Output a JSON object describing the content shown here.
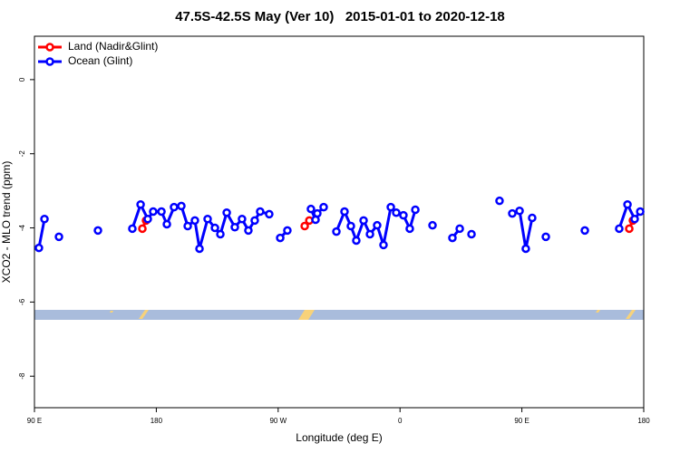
{
  "chart_data": {
    "type": "line",
    "title": "47.5S-42.5S May (Ver 10)   2015-01-01 to 2020-12-18",
    "xlabel": "Longitude (deg E)",
    "ylabel": "XCO2 - MLO trend (ppm)",
    "xlim": [
      90,
      540
    ],
    "xticks": [
      {
        "value": 90,
        "label": "90 E"
      },
      {
        "value": 180,
        "label": "180"
      },
      {
        "value": 270,
        "label": "90 W"
      },
      {
        "value": 360,
        "label": "0"
      },
      {
        "value": 450,
        "label": "90 E"
      },
      {
        "value": 540,
        "label": "180"
      }
    ],
    "ylim": [
      -8.85,
      1.17
    ],
    "yticks": [
      0,
      -2,
      -4,
      -6,
      -8
    ],
    "legend": "topleft",
    "series": [
      {
        "name": "Land (Nadir&Glint)",
        "color": "#ff0000",
        "x": [
          169.7,
          172.4,
          null,
          289.6,
          293.0,
          null,
          529.3,
          532.0
        ],
        "values": [
          -4.02,
          -3.8,
          null,
          -3.95,
          -3.8,
          null,
          -4.02,
          -3.8
        ]
      },
      {
        "name": "Ocean (Glint)",
        "color": "#0000ff",
        "x": [
          93.3,
          97.4,
          null,
          108.1,
          null,
          136.9,
          null,
          162.3,
          168.4,
          173.7,
          177.7,
          183.8,
          187.8,
          193.1,
          198.5,
          203.2,
          208.5,
          211.9,
          217.9,
          223.3,
          227.3,
          232.0,
          238.0,
          243.3,
          248.0,
          252.7,
          256.7,
          263.4,
          null,
          271.5,
          276.8,
          null,
          294.2,
          297.6,
          298.9,
          303.6,
          null,
          313.0,
          319.0,
          323.7,
          327.7,
          333.1,
          337.8,
          343.1,
          347.8,
          353.2,
          357.2,
          362.5,
          367.2,
          371.3,
          null,
          384.0,
          null,
          398.7,
          404.1,
          null,
          412.8,
          null,
          433.5,
          null,
          442.9,
          448.3,
          452.9,
          457.6,
          null,
          467.7,
          null,
          496.5,
          null,
          521.9,
          528.0,
          533.3,
          537.4
        ],
        "values": [
          -4.54,
          -3.76,
          null,
          -4.24,
          null,
          -4.07,
          null,
          -4.02,
          -3.37,
          -3.76,
          -3.56,
          -3.56,
          -3.9,
          -3.44,
          -3.41,
          -3.95,
          -3.8,
          -4.56,
          -3.76,
          -4.0,
          -4.17,
          -3.59,
          -3.98,
          -3.76,
          -4.07,
          -3.8,
          -3.56,
          -3.63,
          null,
          -4.27,
          -4.07,
          null,
          -3.49,
          -3.78,
          -3.61,
          -3.44,
          null,
          -4.1,
          -3.56,
          -3.95,
          -4.34,
          -3.8,
          -4.17,
          -3.93,
          -4.46,
          -3.44,
          -3.59,
          -3.66,
          -4.02,
          -3.51,
          null,
          -3.93,
          null,
          -4.27,
          -4.02,
          null,
          -4.17,
          null,
          -3.27,
          null,
          -3.61,
          -3.54,
          -4.56,
          -3.73,
          null,
          -4.24,
          null,
          -4.07,
          null,
          -4.02,
          -3.37,
          -3.76,
          -3.56
        ]
      }
    ]
  }
}
